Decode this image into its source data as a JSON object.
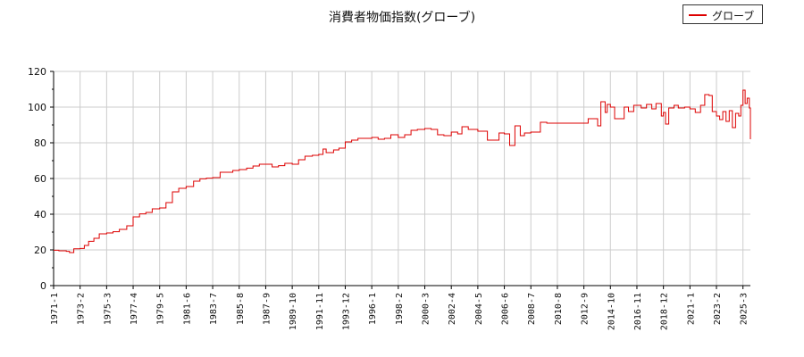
{
  "chart_data": {
    "type": "line",
    "title": "消費者物価指数(グローブ)",
    "xlabel": "",
    "ylabel": "",
    "ylim": [
      0,
      120
    ],
    "yticks": [
      0,
      20,
      40,
      60,
      80,
      100,
      120
    ],
    "grid": true,
    "legend_position": "top-right",
    "xticks": [
      "1971-1",
      "1973-2",
      "1975-3",
      "1977-4",
      "1979-5",
      "1981-6",
      "1983-7",
      "1985-8",
      "1987-9",
      "1989-10",
      "1991-11",
      "1993-12",
      "1996-1",
      "1998-2",
      "2000-3",
      "2002-4",
      "2004-5",
      "2006-6",
      "2008-7",
      "2010-8",
      "2012-9",
      "2014-10",
      "2016-11",
      "2018-12",
      "2021-1",
      "2023-2",
      "2025-3"
    ],
    "x_end": "2025-10",
    "series": [
      {
        "name": "グローブ",
        "color": "#dd0000",
        "points": [
          [
            "1971-1",
            19.8
          ],
          [
            "1971-6",
            19.5
          ],
          [
            "1972-1",
            19.2
          ],
          [
            "1972-4",
            18.5
          ],
          [
            "1972-8",
            20.6
          ],
          [
            "1973-2",
            20.8
          ],
          [
            "1973-6",
            22.5
          ],
          [
            "1973-10",
            24.8
          ],
          [
            "1974-3",
            26.5
          ],
          [
            "1974-8",
            29.0
          ],
          [
            "1975-3",
            29.5
          ],
          [
            "1975-9",
            30.2
          ],
          [
            "1976-3",
            31.5
          ],
          [
            "1976-10",
            33.5
          ],
          [
            "1977-4",
            38.5
          ],
          [
            "1977-10",
            40.2
          ],
          [
            "1978-4",
            41.0
          ],
          [
            "1978-10",
            43.0
          ],
          [
            "1979-5",
            43.5
          ],
          [
            "1979-11",
            46.5
          ],
          [
            "1980-5",
            52.5
          ],
          [
            "1980-11",
            54.5
          ],
          [
            "1981-6",
            55.5
          ],
          [
            "1982-1",
            58.5
          ],
          [
            "1982-7",
            59.8
          ],
          [
            "1983-1",
            60.2
          ],
          [
            "1983-7",
            60.5
          ],
          [
            "1984-2",
            63.5
          ],
          [
            "1984-8",
            63.5
          ],
          [
            "1985-2",
            64.5
          ],
          [
            "1985-8",
            65.0
          ],
          [
            "1986-3",
            65.8
          ],
          [
            "1986-9",
            67.0
          ],
          [
            "1987-3",
            68.0
          ],
          [
            "1987-9",
            68.0
          ],
          [
            "1988-3",
            66.5
          ],
          [
            "1988-9",
            67.2
          ],
          [
            "1989-3",
            68.5
          ],
          [
            "1989-10",
            68.0
          ],
          [
            "1990-4",
            70.5
          ],
          [
            "1990-10",
            72.5
          ],
          [
            "1991-5",
            73.0
          ],
          [
            "1991-11",
            73.5
          ],
          [
            "1992-3",
            76.5
          ],
          [
            "1992-6",
            74.5
          ],
          [
            "1993-1",
            76.0
          ],
          [
            "1993-6",
            77.0
          ],
          [
            "1993-12",
            80.5
          ],
          [
            "1994-6",
            81.5
          ],
          [
            "1994-12",
            82.5
          ],
          [
            "1995-6",
            82.5
          ],
          [
            "1996-1",
            83.0
          ],
          [
            "1996-7",
            82.0
          ],
          [
            "1997-1",
            82.5
          ],
          [
            "1997-7",
            84.5
          ],
          [
            "1998-2",
            83.0
          ],
          [
            "1998-8",
            84.5
          ],
          [
            "1999-2",
            87.0
          ],
          [
            "1999-8",
            87.5
          ],
          [
            "2000-3",
            88.0
          ],
          [
            "2000-9",
            87.5
          ],
          [
            "2001-3",
            84.5
          ],
          [
            "2001-9",
            84.0
          ],
          [
            "2002-4",
            86.0
          ],
          [
            "2002-10",
            85.0
          ],
          [
            "2003-2",
            89.0
          ],
          [
            "2003-8",
            87.5
          ],
          [
            "2004-5",
            86.5
          ],
          [
            "2004-11",
            86.5
          ],
          [
            "2005-2",
            81.5
          ],
          [
            "2005-8",
            81.5
          ],
          [
            "2006-1",
            85.5
          ],
          [
            "2006-6",
            85.0
          ],
          [
            "2006-11",
            78.5
          ],
          [
            "2007-4",
            89.5
          ],
          [
            "2007-9",
            84.0
          ],
          [
            "2008-1",
            85.5
          ],
          [
            "2008-7",
            86.0
          ],
          [
            "2009-1",
            86.0
          ],
          [
            "2009-4",
            91.5
          ],
          [
            "2009-10",
            91.0
          ],
          [
            "2010-4",
            91.0
          ],
          [
            "2010-8",
            91.0
          ],
          [
            "2011-8",
            91.0
          ],
          [
            "2012-9",
            91.0
          ],
          [
            "2013-1",
            93.5
          ],
          [
            "2013-8",
            93.5
          ],
          [
            "2013-10",
            89.5
          ],
          [
            "2014-1",
            103.0
          ],
          [
            "2014-5",
            97.0
          ],
          [
            "2014-7",
            101.5
          ],
          [
            "2014-10",
            100.0
          ],
          [
            "2015-2",
            93.5
          ],
          [
            "2015-8",
            93.5
          ],
          [
            "2015-11",
            100.0
          ],
          [
            "2016-3",
            97.5
          ],
          [
            "2016-8",
            101.0
          ],
          [
            "2016-11",
            101.0
          ],
          [
            "2017-3",
            99.5
          ],
          [
            "2017-8",
            101.5
          ],
          [
            "2018-1",
            99.0
          ],
          [
            "2018-5",
            102.0
          ],
          [
            "2018-10",
            95.0
          ],
          [
            "2018-12",
            97.0
          ],
          [
            "2019-2",
            90.5
          ],
          [
            "2019-5",
            99.5
          ],
          [
            "2019-10",
            101.0
          ],
          [
            "2020-2",
            99.5
          ],
          [
            "2020-8",
            100.0
          ],
          [
            "2021-1",
            99.0
          ],
          [
            "2021-6",
            97.0
          ],
          [
            "2021-11",
            101.0
          ],
          [
            "2022-3",
            107.0
          ],
          [
            "2022-7",
            106.5
          ],
          [
            "2022-10",
            97.5
          ],
          [
            "2023-2",
            95.0
          ],
          [
            "2023-5",
            93.0
          ],
          [
            "2023-8",
            97.5
          ],
          [
            "2023-11",
            92.0
          ],
          [
            "2024-2",
            98.0
          ],
          [
            "2024-5",
            88.5
          ],
          [
            "2024-8",
            96.5
          ],
          [
            "2024-11",
            95.0
          ],
          [
            "2025-1",
            101.0
          ],
          [
            "2025-3",
            109.5
          ],
          [
            "2025-5",
            102.0
          ],
          [
            "2025-7",
            105.0
          ],
          [
            "2025-9",
            99.5
          ],
          [
            "2025-10",
            82.0
          ]
        ]
      }
    ]
  }
}
